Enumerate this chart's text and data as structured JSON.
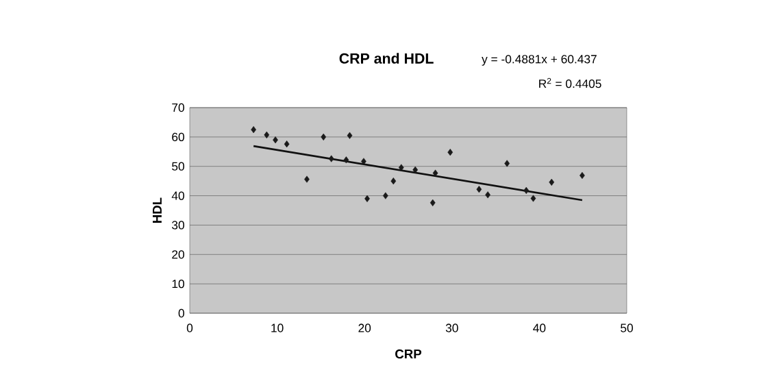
{
  "chart_data": {
    "type": "scatter",
    "title": "CRP and HDL",
    "xlabel": "CRP",
    "ylabel": "HDL",
    "annotations": [
      "y = -0.4881x + 60.437",
      "R$^{2}$ = 0.4405"
    ],
    "xlim": [
      0,
      50
    ],
    "ylim": [
      0,
      70
    ],
    "xticks": [
      0,
      10,
      20,
      30,
      40,
      50
    ],
    "yticks": [
      0,
      10,
      20,
      30,
      40,
      50,
      60,
      70
    ],
    "grid": "y",
    "marker": "diamond",
    "series": [
      {
        "color": "#1a1a1a",
        "x": [
          7.3,
          8.8,
          9.8,
          11.1,
          13.4,
          15.3,
          16.2,
          17.9,
          18.3,
          19.9,
          20.3,
          22.4,
          23.3,
          24.2,
          25.8,
          27.8,
          28.1,
          29.8,
          33.1,
          34.1,
          36.3,
          38.5,
          39.3,
          41.4,
          44.9
        ],
        "values": [
          62.5,
          60.7,
          59.0,
          57.6,
          45.6,
          60.0,
          52.6,
          52.2,
          60.5,
          51.7,
          39.0,
          40.0,
          45.0,
          49.6,
          48.8,
          37.6,
          47.7,
          54.8,
          42.2,
          40.3,
          51.0,
          41.8,
          39.1,
          44.6,
          46.9
        ]
      },
      {
        "type": "line",
        "color": "#111111",
        "marker": "none",
        "x": [
          7.3,
          44.9
        ],
        "values": [
          56.9,
          38.5
        ]
      }
    ]
  }
}
